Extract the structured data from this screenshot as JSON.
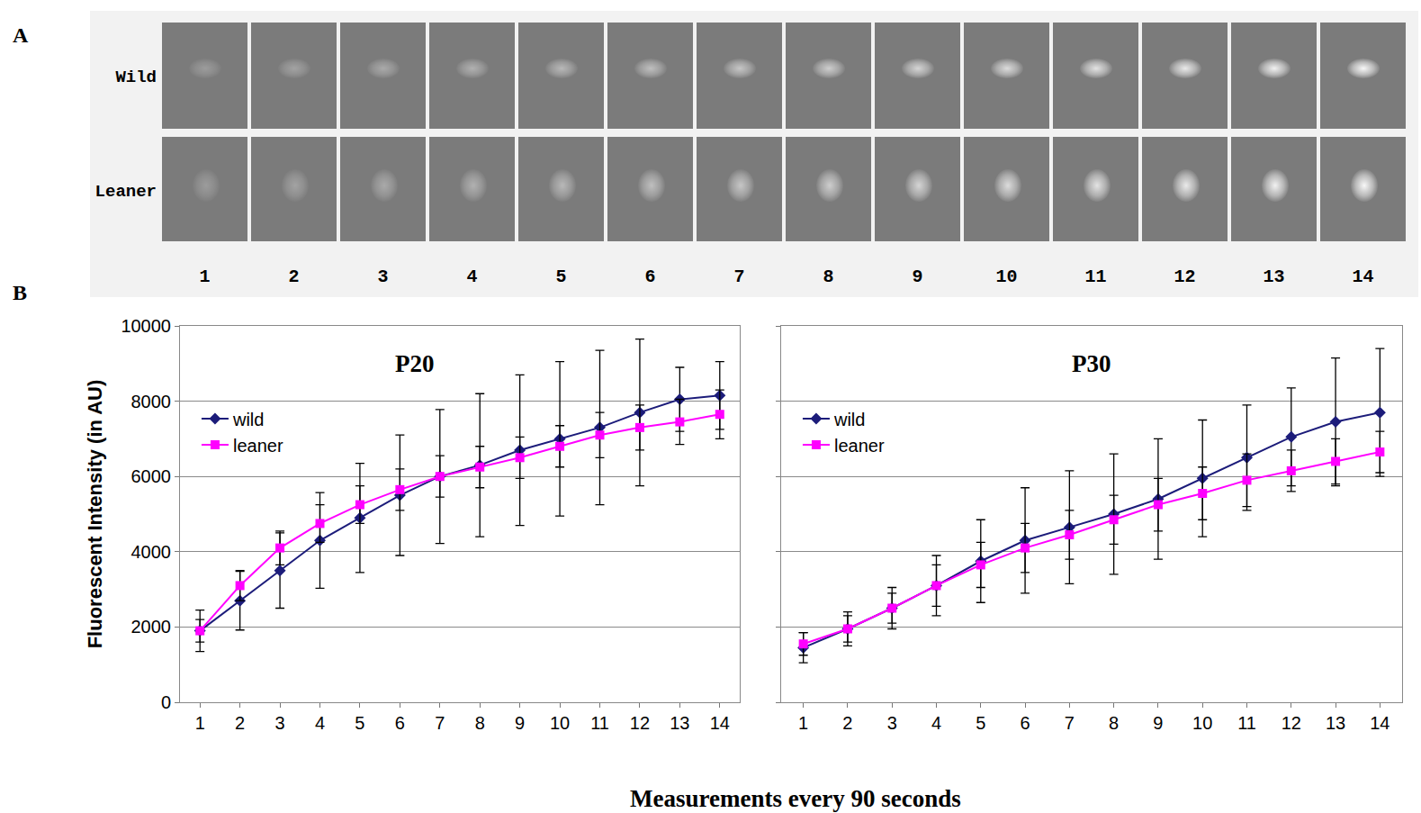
{
  "figure": {
    "panel_labels": [
      "A",
      "B"
    ],
    "xlabel": "Measurements every 90 seconds"
  },
  "image_strip": {
    "rows": [
      "Wild",
      "Leaner"
    ],
    "frames": [
      1,
      2,
      3,
      4,
      5,
      6,
      7,
      8,
      9,
      10,
      11,
      12,
      13,
      14
    ]
  },
  "chart_data": [
    {
      "type": "line",
      "title": "P20",
      "ylabel": "Fluorescent Intensity (in AU)",
      "x": [
        1,
        2,
        3,
        4,
        5,
        6,
        7,
        8,
        9,
        10,
        11,
        12,
        13,
        14
      ],
      "xlim": [
        0.5,
        14.5
      ],
      "xticks": [
        1,
        2,
        3,
        4,
        5,
        6,
        7,
        8,
        9,
        10,
        11,
        12,
        13,
        14
      ],
      "ylim": [
        0,
        10000
      ],
      "yticks": [
        0,
        2000,
        4000,
        6000,
        8000,
        10000
      ],
      "grid": true,
      "legend": "upper left",
      "series": [
        {
          "name": "wild",
          "color": "#1c1c7a",
          "marker": "diamond",
          "values": [
            1900,
            2700,
            3500,
            4300,
            4900,
            5500,
            6000,
            6300,
            6700,
            7000,
            7300,
            7700,
            8050,
            8150
          ],
          "errors": [
            550,
            780,
            1000,
            1270,
            1450,
            1600,
            1780,
            1900,
            2000,
            2050,
            2050,
            1950,
            850,
            900
          ]
        },
        {
          "name": "leaner",
          "color": "#ff00ff",
          "marker": "square",
          "values": [
            1900,
            3100,
            4100,
            4750,
            5250,
            5650,
            6000,
            6250,
            6500,
            6800,
            7100,
            7300,
            7450,
            7650
          ],
          "errors": [
            300,
            400,
            450,
            500,
            500,
            550,
            550,
            550,
            550,
            550,
            600,
            600,
            600,
            650
          ]
        }
      ]
    },
    {
      "type": "line",
      "title": "P30",
      "tick_labels": "x",
      "x": [
        1,
        2,
        3,
        4,
        5,
        6,
        7,
        8,
        9,
        10,
        11,
        12,
        13,
        14
      ],
      "xlim": [
        0.5,
        14.5
      ],
      "xticks": [
        1,
        2,
        3,
        4,
        5,
        6,
        7,
        8,
        9,
        10,
        11,
        12,
        13,
        14
      ],
      "ylim": [
        0,
        10000
      ],
      "yticks": [
        0,
        2000,
        4000,
        6000,
        8000,
        10000
      ],
      "grid": true,
      "legend": "upper left",
      "series": [
        {
          "name": "wild",
          "color": "#1c1c7a",
          "marker": "diamond",
          "values": [
            1450,
            1950,
            2500,
            3100,
            3750,
            4300,
            4650,
            5000,
            5400,
            5950,
            6500,
            7050,
            7450,
            7700
          ],
          "errors": [
            400,
            450,
            550,
            800,
            1100,
            1400,
            1500,
            1600,
            1600,
            1550,
            1400,
            1300,
            1700,
            1700
          ]
        },
        {
          "name": "leaner",
          "color": "#ff00ff",
          "marker": "square",
          "values": [
            1550,
            1950,
            2500,
            3100,
            3650,
            4100,
            4450,
            4850,
            5250,
            5550,
            5900,
            6150,
            6400,
            6650
          ],
          "errors": [
            300,
            350,
            400,
            550,
            600,
            650,
            650,
            650,
            700,
            700,
            700,
            550,
            600,
            550
          ]
        }
      ]
    }
  ]
}
